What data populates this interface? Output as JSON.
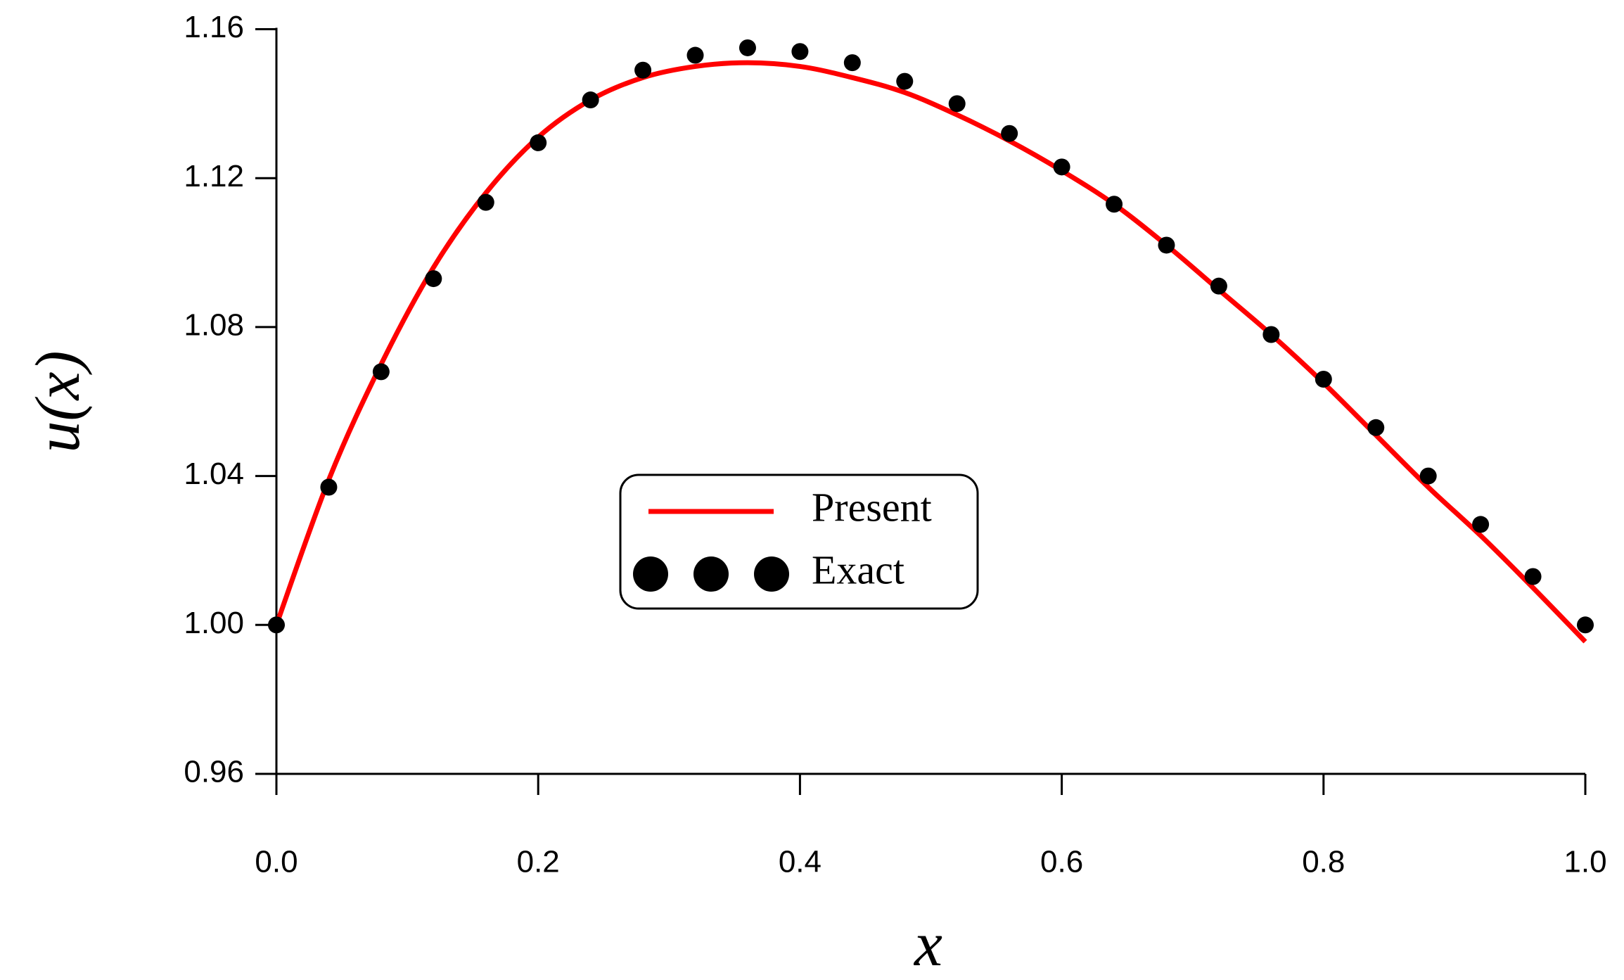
{
  "chart_data": {
    "type": "line",
    "xlabel": "x",
    "ylabel": "u(x)",
    "x": [
      0,
      0.04,
      0.08,
      0.12,
      0.16,
      0.2,
      0.24,
      0.28,
      0.32,
      0.36,
      0.4,
      0.44,
      0.48,
      0.52,
      0.56,
      0.6,
      0.64,
      0.68,
      0.72,
      0.76,
      0.8,
      0.84,
      0.88,
      0.92,
      0.96,
      1
    ],
    "series": [
      {
        "name": "Present",
        "color": "#ff0000",
        "style": "line",
        "values": [
          1.0,
          1.039,
          1.07,
          1.096,
          1.116,
          1.131,
          1.141,
          1.147,
          1.15,
          1.151,
          1.15,
          1.147,
          1.143,
          1.137,
          1.13,
          1.122,
          1.113,
          1.102,
          1.09,
          1.078,
          1.065,
          1.051,
          1.037,
          1.024,
          1.01,
          0.9955
        ]
      },
      {
        "name": "Exact",
        "color": "#000000",
        "style": "markers",
        "values": [
          1.0,
          1.037,
          1.068,
          1.093,
          1.1135,
          1.1295,
          1.141,
          1.149,
          1.153,
          1.155,
          1.154,
          1.151,
          1.146,
          1.14,
          1.132,
          1.123,
          1.113,
          1.102,
          1.091,
          1.078,
          1.066,
          1.053,
          1.04,
          1.027,
          1.013,
          1.0
        ]
      }
    ],
    "xlim": [
      0,
      1
    ],
    "xticks": [
      {
        "value": 0,
        "label": "0.0"
      },
      0.2,
      0.4,
      0.6,
      0.8,
      {
        "value": 1,
        "label": "1.0"
      }
    ],
    "ylim": [
      0.96,
      1.16
    ],
    "yticks": [
      0.96,
      {
        "value": 1,
        "label": "1.00"
      },
      1.04,
      1.08,
      1.12,
      1.16
    ],
    "legend": "center"
  }
}
